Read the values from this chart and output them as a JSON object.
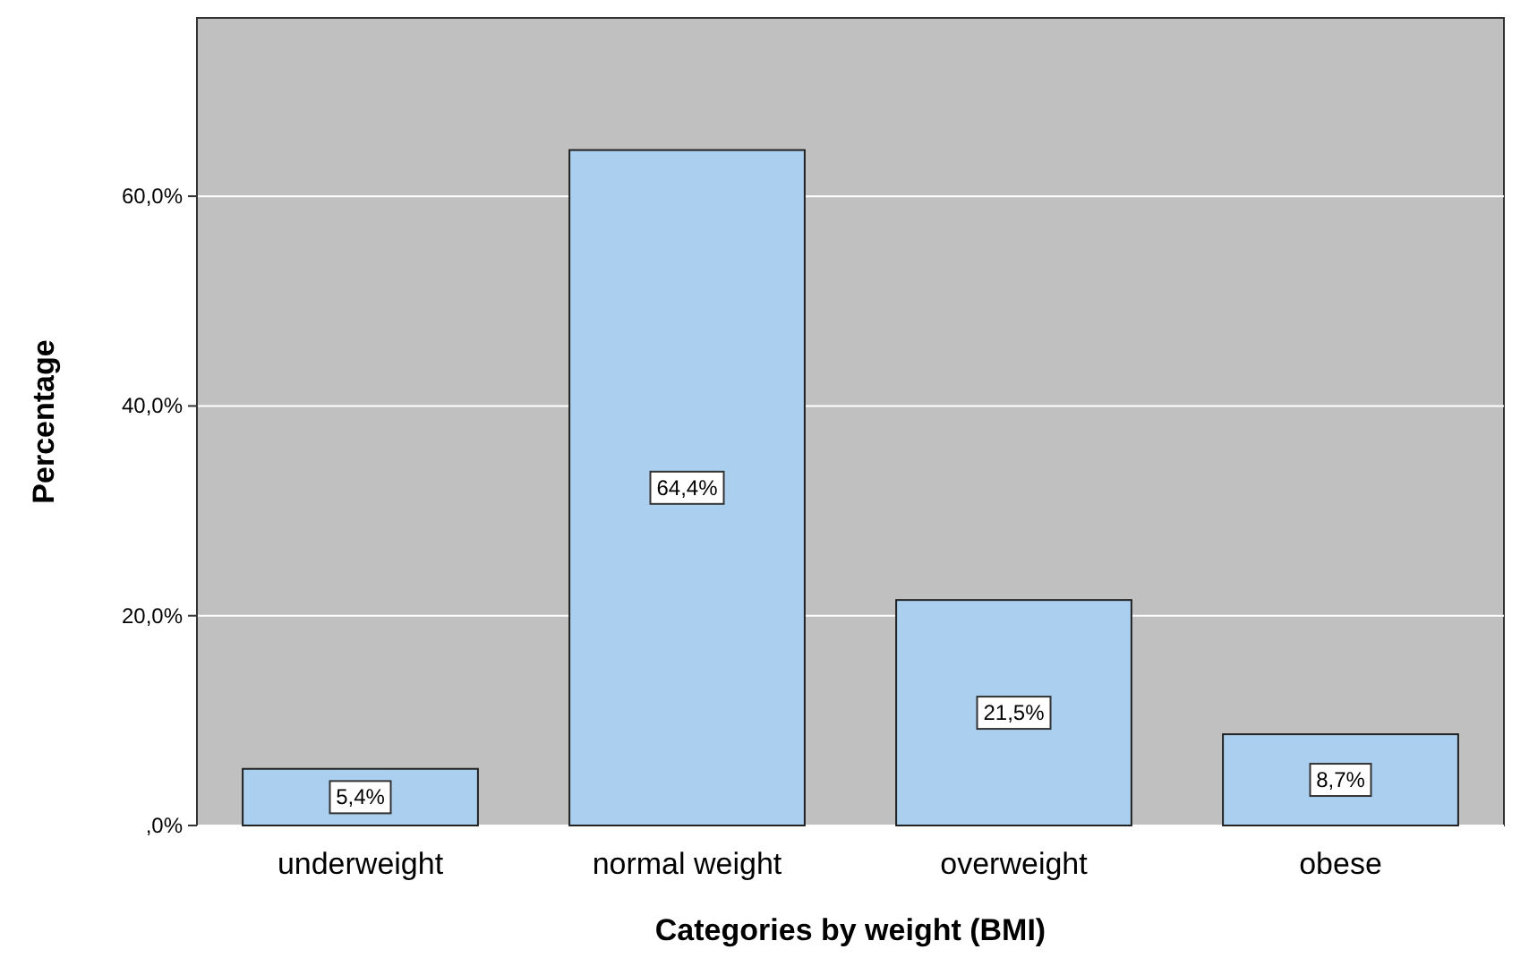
{
  "chart_data": {
    "type": "bar",
    "xlabel": "Categories by weight (BMI)",
    "ylabel": "Percentage",
    "categories": [
      "underweight",
      "normal weight",
      "overweight",
      "obese"
    ],
    "values": [
      5.4,
      64.4,
      21.5,
      8.7
    ],
    "value_labels": [
      "5,4%",
      "64,4%",
      "21,5%",
      "8,7%"
    ],
    "color": "#abcfee",
    "ylim": [
      0,
      77
    ],
    "yticks": [
      {
        "value": 0,
        "label": ",0%"
      },
      {
        "value": 20,
        "label": "20,0%"
      },
      {
        "value": 40,
        "label": "40,0%"
      },
      {
        "value": 60,
        "label": "60,0%"
      }
    ],
    "grid": "y"
  }
}
